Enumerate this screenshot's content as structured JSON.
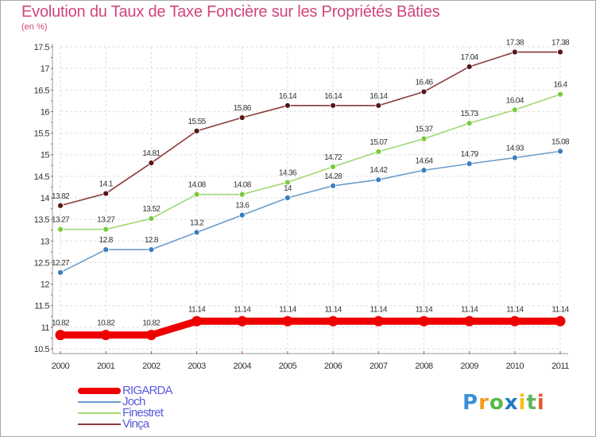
{
  "header": {
    "title": "Evolution du Taux de Taxe Foncière sur les Propriétés Bâties",
    "unit": "(en %)"
  },
  "chart_data": {
    "type": "line",
    "title": "Evolution du Taux de Taxe Foncière sur les Propriétés Bâties",
    "ylabel": "(en %)",
    "xlabel": "",
    "x": [
      "2000",
      "2001",
      "2002",
      "2003",
      "2004",
      "2005",
      "2006",
      "2007",
      "2008",
      "2009",
      "2010",
      "2011"
    ],
    "ylim": [
      10.5,
      17.5
    ],
    "yticks": [
      "10.5",
      "11",
      "11.5",
      "12",
      "12.5",
      "13",
      "13.5",
      "14",
      "14.5",
      "15",
      "15.5",
      "16",
      "16.5",
      "17",
      "17.5"
    ],
    "grid": true,
    "legend_position": "bottom-left",
    "series": [
      {
        "name": "RIGARDA",
        "color": "#ee0000",
        "values": [
          10.82,
          10.82,
          10.82,
          11.14,
          11.14,
          11.14,
          11.14,
          11.14,
          11.14,
          11.14,
          11.14,
          11.14
        ],
        "labels": [
          "10.82",
          "10.82",
          "10.82",
          "11.14",
          "11.14",
          "11.14",
          "11.14",
          "11.14",
          "11.14",
          "11.14",
          "11.14",
          "11.14"
        ]
      },
      {
        "name": "Joch",
        "color": "#6b9dcc",
        "values": [
          12.27,
          12.8,
          12.8,
          13.2,
          13.6,
          14.0,
          14.28,
          14.42,
          14.64,
          14.79,
          14.93,
          15.08
        ],
        "labels": [
          "12.27",
          "12.8",
          "12.8",
          "13.2",
          "13.6",
          "14",
          "14.28",
          "14.42",
          "14.64",
          "14.79",
          "14.93",
          "15.08"
        ]
      },
      {
        "name": "Finestret",
        "color": "#a0d870",
        "values": [
          13.27,
          13.27,
          13.52,
          14.08,
          14.08,
          14.36,
          14.72,
          15.07,
          15.37,
          15.73,
          16.04,
          16.4
        ],
        "labels": [
          "13.27",
          "13.27",
          "13.52",
          "14.08",
          "14.08",
          "14.36",
          "14.72",
          "15.07",
          "15.37",
          "15.73",
          "16.04",
          "16.4"
        ]
      },
      {
        "name": "Vinça",
        "color": "#8b3a3a",
        "values": [
          13.82,
          14.1,
          14.81,
          15.55,
          15.86,
          16.14,
          16.14,
          16.14,
          16.46,
          17.04,
          17.38,
          17.38
        ],
        "labels": [
          "13.82",
          "14.1",
          "14.81",
          "15.55",
          "15.86",
          "16.14",
          "16.14",
          "16.14",
          "16.46",
          "17.04",
          "17.38",
          "17.38"
        ]
      }
    ]
  },
  "legend": {
    "items": [
      {
        "label": "RIGARDA",
        "color": "#ee0000"
      },
      {
        "label": "Joch",
        "color": "#6b9dcc"
      },
      {
        "label": "Finestret",
        "color": "#a0d870"
      },
      {
        "label": "Vinça",
        "color": "#8b3a3a"
      }
    ]
  },
  "logo": {
    "letters": [
      "P",
      "r",
      "o",
      "x",
      "i",
      "t",
      "i"
    ],
    "colors": [
      "#3b8fd8",
      "#f39a1e",
      "#57b847",
      "#1e78c8",
      "#f2c21b",
      "#5cb85c",
      "#e55b2c"
    ]
  }
}
